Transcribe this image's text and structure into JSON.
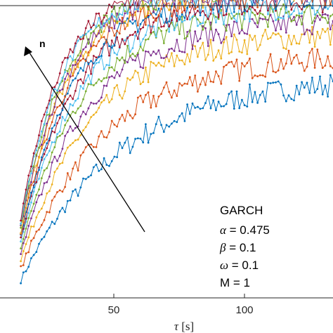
{
  "chart_data": {
    "type": "line",
    "xlabel_symbol": "τ",
    "xlabel_unit": " [s]",
    "xlim": [
      -10,
      150
    ],
    "ylim": [
      0,
      1
    ],
    "x_ticks": [
      50,
      100
    ],
    "x_tick_labels": [
      "50",
      "100"
    ],
    "grid": false,
    "arrow_label": "n",
    "annotation": {
      "title": "GARCH",
      "lines": [
        {
          "symbol": "α",
          "text": " = 0.475"
        },
        {
          "symbol": "β",
          "text": " = 0.1"
        },
        {
          "symbol": "ω",
          "text": " = 0.1"
        },
        {
          "symbol": "",
          "text": "M = 1"
        }
      ]
    },
    "series": [
      {
        "color": "#0072BD",
        "start": 0.06,
        "plateau": 0.76,
        "rate": 0.021
      },
      {
        "color": "#D95319",
        "start": 0.1,
        "plateau": 0.84,
        "rate": 0.024
      },
      {
        "color": "#EDB120",
        "start": 0.13,
        "plateau": 0.91,
        "rate": 0.028
      },
      {
        "color": "#7E2F8E",
        "start": 0.15,
        "plateau": 0.95,
        "rate": 0.031
      },
      {
        "color": "#77AC30",
        "start": 0.17,
        "plateau": 0.98,
        "rate": 0.034
      },
      {
        "color": "#4DBEEE",
        "start": 0.19,
        "plateau": 1.0,
        "rate": 0.036
      },
      {
        "color": "#A2142F",
        "start": 0.2,
        "plateau": 1.02,
        "rate": 0.038
      },
      {
        "color": "#0072BD",
        "start": 0.21,
        "plateau": 1.03,
        "rate": 0.04
      },
      {
        "color": "#D95319",
        "start": 0.22,
        "plateau": 1.04,
        "rate": 0.042
      },
      {
        "color": "#EDB120",
        "start": 0.23,
        "plateau": 1.05,
        "rate": 0.044
      },
      {
        "color": "#7E2F8E",
        "start": 0.24,
        "plateau": 1.05,
        "rate": 0.046
      },
      {
        "color": "#77AC30",
        "start": 0.25,
        "plateau": 1.06,
        "rate": 0.048
      },
      {
        "color": "#4DBEEE",
        "start": 0.26,
        "plateau": 1.06,
        "rate": 0.05
      },
      {
        "color": "#A2142F",
        "start": 0.27,
        "plateau": 1.07,
        "rate": 0.052
      }
    ]
  }
}
